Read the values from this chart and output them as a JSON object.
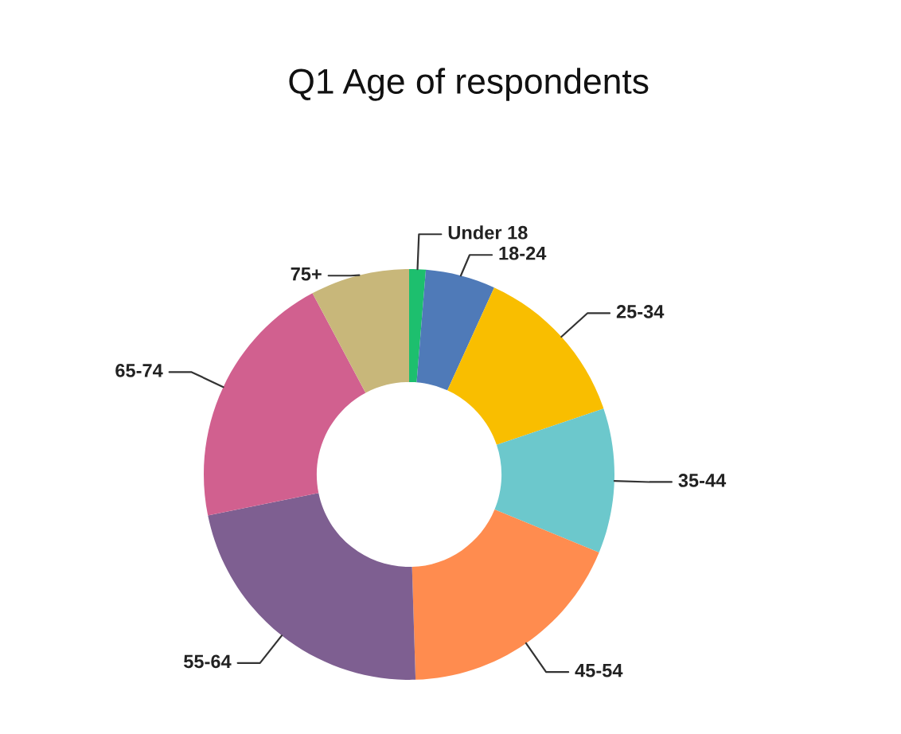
{
  "chart_data": {
    "type": "donut",
    "title": "Q1 Age of respondents",
    "categories": [
      "Under 18",
      "18-24",
      "25-34",
      "35-44",
      "45-54",
      "55-64",
      "65-74",
      "75+"
    ],
    "values": [
      1.3,
      5.5,
      13,
      11.4,
      18.3,
      22.3,
      20.4,
      7.8
    ],
    "colors": [
      "#1dbf6e",
      "#4f7ab8",
      "#f9be00",
      "#6cc8cc",
      "#ff8c4f",
      "#7e5f91",
      "#d1608f",
      "#c8b77a"
    ],
    "legend": false
  }
}
